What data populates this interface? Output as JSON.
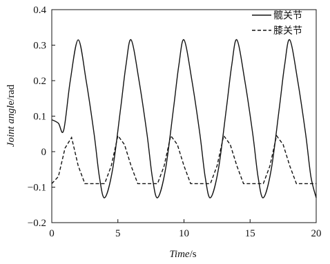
{
  "chart_data": {
    "type": "line",
    "xlabel": {
      "italic": "Time",
      "unit": "/s"
    },
    "ylabel": {
      "italic1": "Joint ang",
      "italic2": "l",
      "plain": "e",
      "unit": "/rad"
    },
    "xlim": [
      0,
      20
    ],
    "ylim": [
      -0.2,
      0.4
    ],
    "xticks": [
      "0",
      "5",
      "10",
      "15",
      "20"
    ],
    "yticks": [
      "−0.2",
      "−0.1",
      "0",
      "0.1",
      "0.2",
      "0.3",
      "0.4"
    ],
    "grid": false,
    "legend_position": "top-right",
    "series": [
      {
        "name": "髋关节",
        "style": "solid",
        "x": [
          0,
          0.5,
          0.9,
          1.4,
          2.0,
          2.6,
          3.2,
          3.6,
          4.0,
          4.6,
          5.2,
          5.6,
          6.0,
          6.6,
          7.2,
          7.6,
          8.0,
          8.6,
          9.2,
          9.6,
          10.0,
          10.6,
          11.2,
          11.6,
          12.0,
          12.6,
          13.2,
          13.6,
          14.0,
          14.6,
          15.2,
          15.6,
          16.0,
          16.6,
          17.2,
          17.6,
          18.0,
          18.6,
          19.2,
          19.6,
          20.0
        ],
        "y": [
          0.09,
          0.08,
          0.06,
          0.2,
          0.315,
          0.2,
          0.05,
          -0.07,
          -0.13,
          -0.05,
          0.12,
          0.24,
          0.315,
          0.2,
          0.05,
          -0.07,
          -0.13,
          -0.05,
          0.12,
          0.24,
          0.315,
          0.2,
          0.05,
          -0.07,
          -0.13,
          -0.05,
          0.12,
          0.24,
          0.315,
          0.2,
          0.05,
          -0.07,
          -0.13,
          -0.05,
          0.12,
          0.24,
          0.315,
          0.2,
          0.05,
          -0.07,
          -0.13
        ]
      },
      {
        "name": "膝关节",
        "style": "dashed",
        "x": [
          0,
          0.5,
          1.0,
          1.5,
          2.0,
          2.5,
          4.0,
          4.5,
          5.0,
          5.5,
          6.0,
          6.5,
          8.0,
          8.5,
          9.0,
          9.5,
          10.0,
          10.5,
          12.0,
          12.5,
          13.0,
          13.5,
          14.0,
          14.5,
          16.0,
          16.5,
          17.0,
          17.5,
          18.0,
          18.5,
          20.0
        ],
        "y": [
          -0.09,
          -0.07,
          0.01,
          0.04,
          -0.04,
          -0.09,
          -0.09,
          -0.04,
          0.045,
          0.02,
          -0.04,
          -0.09,
          -0.09,
          -0.04,
          0.045,
          0.02,
          -0.04,
          -0.09,
          -0.09,
          -0.04,
          0.045,
          0.02,
          -0.04,
          -0.09,
          -0.09,
          -0.04,
          0.045,
          0.02,
          -0.04,
          -0.09,
          -0.09
        ]
      }
    ]
  }
}
